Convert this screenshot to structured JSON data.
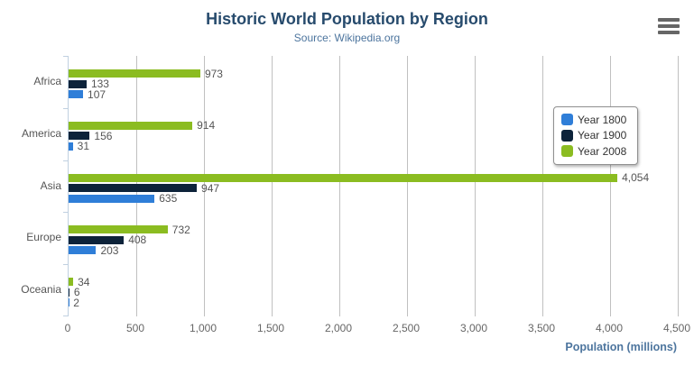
{
  "chart": {
    "title": "Historic World Population by Region",
    "subtitle": "Source: Wikipedia.org"
  },
  "menu": {
    "icon": "hamburger-icon"
  },
  "chart_data": {
    "type": "bar",
    "orientation": "horizontal",
    "title": "Historic World Population by Region",
    "subtitle": "Source: Wikipedia.org",
    "categories": [
      "Africa",
      "America",
      "Asia",
      "Europe",
      "Oceania"
    ],
    "series": [
      {
        "name": "Year 1800",
        "color": "#2f7ed8",
        "values": [
          107,
          31,
          635,
          203,
          2
        ]
      },
      {
        "name": "Year 1900",
        "color": "#0d233a",
        "values": [
          133,
          156,
          947,
          408,
          6
        ]
      },
      {
        "name": "Year 2008",
        "color": "#8bbc21",
        "values": [
          973,
          914,
          4054,
          732,
          34
        ]
      }
    ],
    "series_render_order_top_to_bottom": [
      "Year 2008",
      "Year 1900",
      "Year 1800"
    ],
    "xlabel": "Population (millions)",
    "ylabel": "",
    "xlim": [
      0,
      4500
    ],
    "xticks": [
      0,
      500,
      1000,
      1500,
      2000,
      2500,
      3000,
      3500,
      4000,
      4500
    ],
    "grid": true,
    "legend_position": "right-inside",
    "data_labels": true
  },
  "colors": {
    "title": "#274b6d",
    "subtitle": "#4d759e",
    "axis_title": "#4d759e",
    "tick_label": "#666666",
    "category_label": "#555555",
    "data_label": "#555555",
    "gridline": "#c0c0c0",
    "axis_line": "#c0d0e0",
    "legend_border": "#909090",
    "legend_text": "#333333",
    "menu_icon": "#666666",
    "background": "#ffffff"
  }
}
